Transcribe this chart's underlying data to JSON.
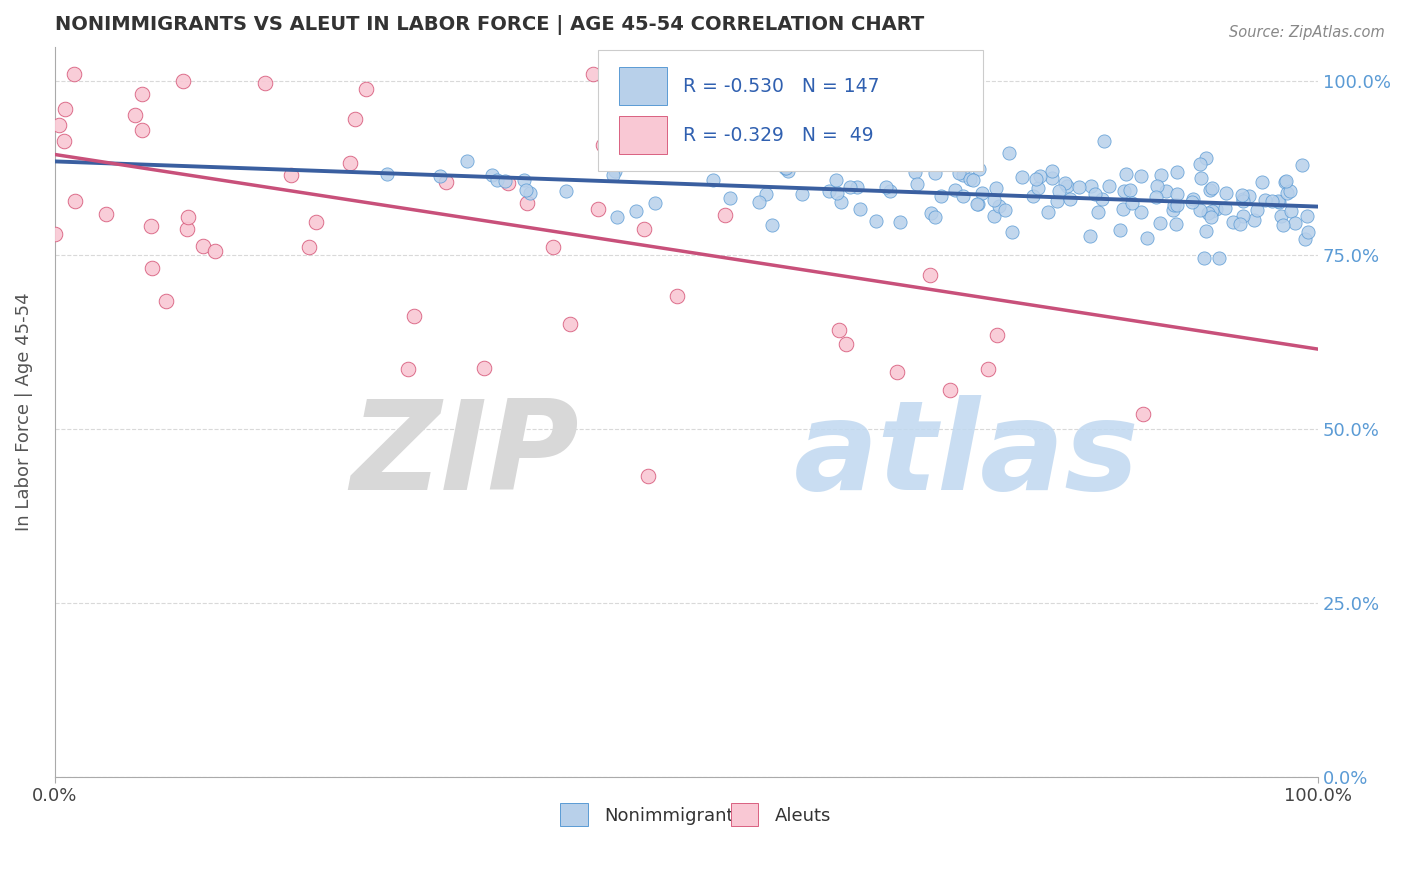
{
  "title": "NONIMMIGRANTS VS ALEUT IN LABOR FORCE | AGE 45-54 CORRELATION CHART",
  "source": "Source: ZipAtlas.com",
  "ylabel": "In Labor Force | Age 45-54",
  "xlim": [
    0.0,
    1.0
  ],
  "ylim": [
    0.0,
    1.05
  ],
  "ytick_labels": [
    "0.0%",
    "25.0%",
    "50.0%",
    "75.0%",
    "100.0%"
  ],
  "ytick_vals": [
    0.0,
    0.25,
    0.5,
    0.75,
    1.0
  ],
  "xtick_labels": [
    "0.0%",
    "100.0%"
  ],
  "xtick_vals": [
    0.0,
    1.0
  ],
  "blue_fill": "#b8d0ea",
  "blue_edge": "#5b9bd5",
  "pink_fill": "#f9c8d4",
  "pink_edge": "#d96080",
  "blue_line_color": "#3a5fa0",
  "pink_line_color": "#c8507a",
  "R_blue": -0.53,
  "N_blue": 147,
  "R_pink": -0.329,
  "N_pink": 49,
  "legend_blue_label": "Nonimmigrants",
  "legend_pink_label": "Aleuts",
  "background_color": "#ffffff",
  "grid_color": "#d0d0d0",
  "blue_trend_start_y": 0.885,
  "blue_trend_end_y": 0.82,
  "pink_trend_start_y": 0.895,
  "pink_trend_end_y": 0.615,
  "right_axis_color": "#5b9bd5",
  "title_color": "#333333",
  "source_color": "#888888",
  "ylabel_color": "#555555"
}
